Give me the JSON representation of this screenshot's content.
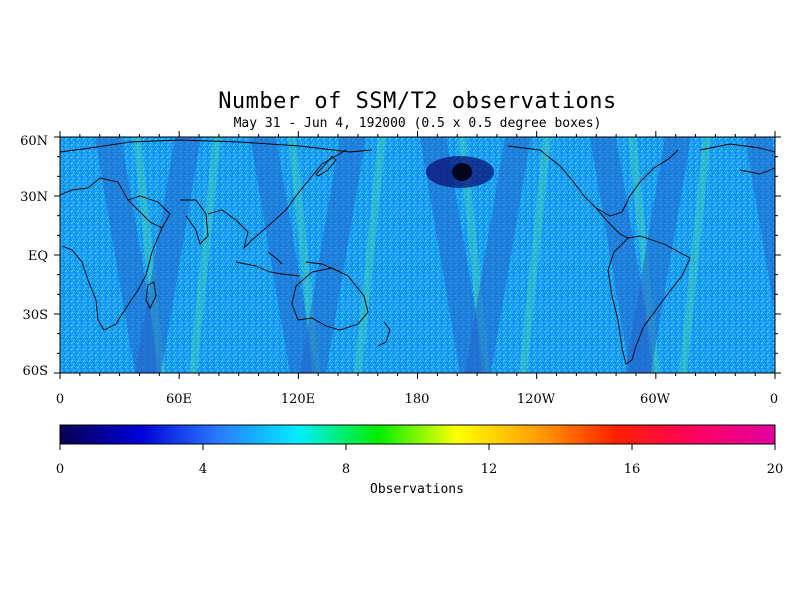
{
  "title": "Number of SSM/T2 observations",
  "subtitle": "May 31 - Jun 4, 192000 (0.5 x 0.5 degree boxes)",
  "lat_labels": [
    "60N",
    "30N",
    "EQ",
    "30S",
    "60S"
  ],
  "lon_labels": [
    "0",
    "60E",
    "120E",
    "180",
    "120W",
    "60W",
    "0"
  ],
  "colorbar": {
    "ticks": [
      "0",
      "4",
      "8",
      "12",
      "16",
      "20"
    ],
    "label": "Observations",
    "range": [
      0,
      20
    ],
    "colors": [
      "#0a0050",
      "#0000d8",
      "#2a7bff",
      "#00eeff",
      "#00ee00",
      "#ffff00",
      "#ffa000",
      "#ff2000",
      "#ff0060",
      "#e000a0"
    ]
  },
  "map": {
    "lon_range": [
      0,
      360
    ],
    "lat_range": [
      -60,
      60
    ],
    "background_color": "#1a9cf0",
    "swath_color": "#2266cc"
  }
}
